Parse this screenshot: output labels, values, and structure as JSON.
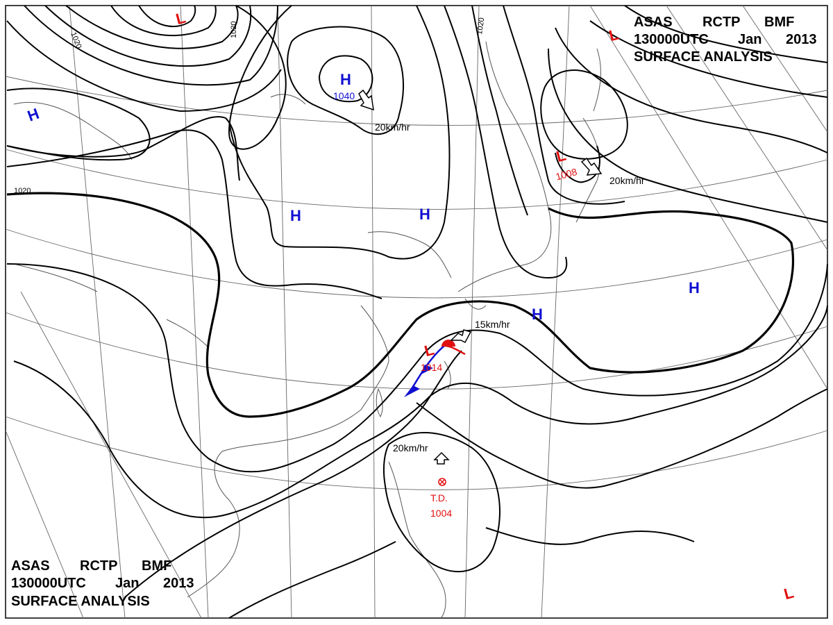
{
  "header_top": {
    "line1": [
      "ASAS",
      "RCTP",
      "BMF"
    ],
    "line2": [
      "130000UTC",
      "Jan",
      "2013"
    ],
    "line3": "SURFACE  ANALYSIS"
  },
  "header_bottom": {
    "line1": [
      "ASAS",
      "RCTP",
      "BMF"
    ],
    "line2": [
      "130000UTC",
      "Jan",
      "2013"
    ],
    "line3": "SURFACE  ANALYSIS"
  },
  "colors": {
    "high": "#1010d0",
    "low": "#e01010",
    "line": "#000000",
    "coast": "#555555",
    "grid": "#666666"
  },
  "isobar_labels": [
    "1020",
    "1020",
    "1020",
    "1020"
  ],
  "systems": {
    "high_north": {
      "symbol": "H",
      "pressure": "1040",
      "motion": "20km/hr"
    },
    "high_west": {
      "symbol": "H"
    },
    "high_mongolia": {
      "symbol": "H"
    },
    "high_north_china": {
      "symbol": "H"
    },
    "high_korea": {
      "symbol": "H"
    },
    "high_pacific": {
      "symbol": "H"
    },
    "low_okhotsk": {
      "symbol": "L",
      "pressure": "1008",
      "motion": "20km/hr"
    },
    "low_taiwan": {
      "symbol": "L",
      "pressure": "1014",
      "motion": "15km/hr"
    },
    "low_top": {
      "symbol": "L"
    },
    "low_topright": {
      "symbol": "L"
    },
    "low_bottomright": {
      "symbol": "L"
    },
    "td": {
      "label": "T.D.",
      "pressure": "1004",
      "motion": "20km/hr"
    }
  }
}
